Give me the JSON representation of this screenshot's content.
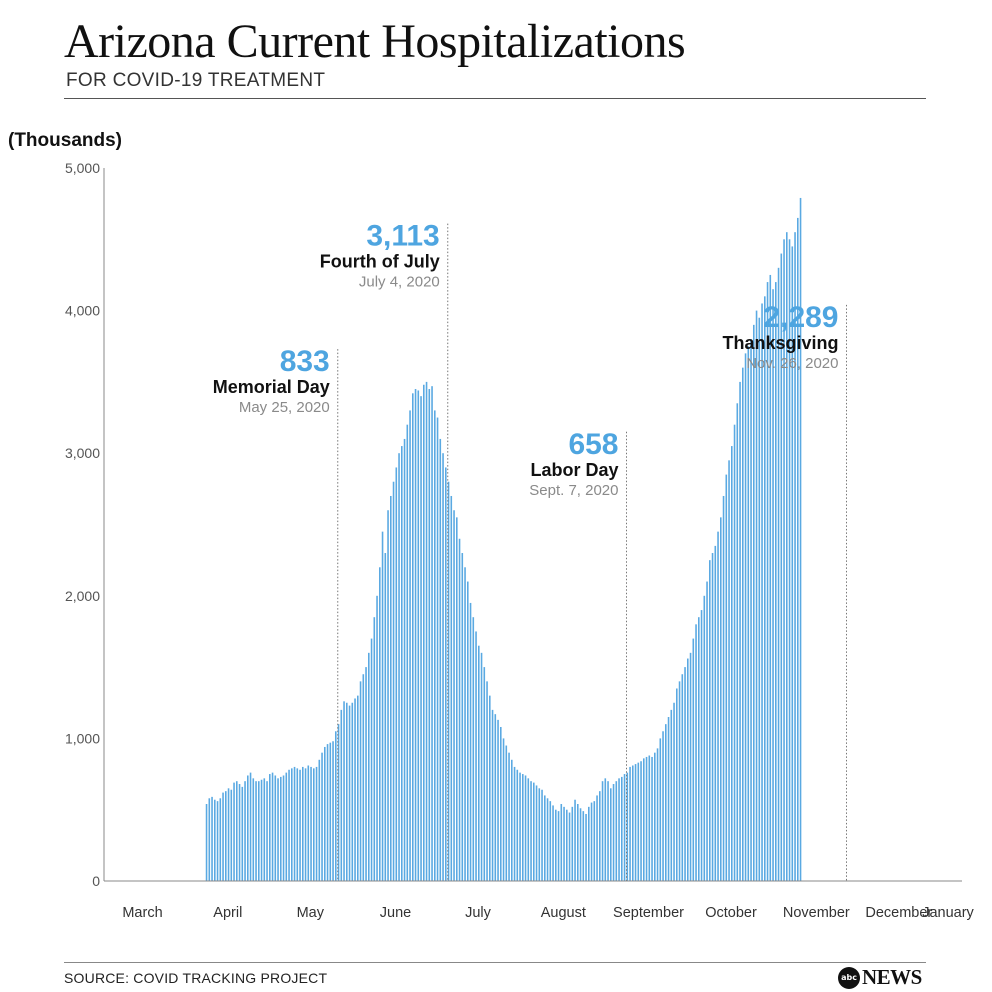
{
  "header": {
    "title": "Arizona Current Hospitalizations",
    "subtitle": "FOR COVID-19 TREATMENT"
  },
  "footer": {
    "source": "SOURCE: COVID TRACKING PROJECT",
    "logo_badge": "abc",
    "logo_text": "NEWS"
  },
  "chart_data": {
    "type": "bar",
    "unit_label": "(Thousands)",
    "bar_color": "#5aa9e2",
    "annotation_value_color": "#4ea5e0",
    "ylim": [
      0,
      5000
    ],
    "yticks": [
      {
        "value": 0,
        "label": "0"
      },
      {
        "value": 1000,
        "label": "1,000"
      },
      {
        "value": 2000,
        "label": "2,000"
      },
      {
        "value": 3000,
        "label": "3,000"
      },
      {
        "value": 4000,
        "label": "4,000"
      },
      {
        "value": 5000,
        "label": "5,000"
      }
    ],
    "xlim": [
      "2020-03-01",
      "2021-01-07"
    ],
    "xticks": [
      {
        "date": "2020-03-15",
        "label": "March"
      },
      {
        "date": "2020-04-15",
        "label": "April"
      },
      {
        "date": "2020-05-15",
        "label": "May"
      },
      {
        "date": "2020-06-15",
        "label": "June"
      },
      {
        "date": "2020-07-15",
        "label": "July"
      },
      {
        "date": "2020-08-15",
        "label": "August"
      },
      {
        "date": "2020-09-15",
        "label": "September"
      },
      {
        "date": "2020-10-15",
        "label": "October"
      },
      {
        "date": "2020-11-15",
        "label": "November"
      },
      {
        "date": "2020-12-15",
        "label": "December"
      },
      {
        "date": "2021-01-15",
        "label": "January"
      }
    ],
    "series": [
      {
        "start_date": "2020-04-07",
        "values": [
          540,
          580,
          590,
          570,
          560,
          580,
          620,
          630,
          650,
          640,
          690,
          700,
          680,
          660,
          700,
          740,
          760,
          720,
          700,
          700,
          710,
          720,
          700,
          750,
          760,
          740,
          720,
          730,
          740,
          760,
          780,
          790,
          800,
          790,
          780,
          800,
          790,
          810,
          800,
          790,
          800,
          850,
          900,
          940,
          960,
          970,
          980,
          1050,
          1100,
          1200,
          1260,
          1250,
          1230,
          1250,
          1280,
          1300,
          1400,
          1450,
          1500,
          1600,
          1700,
          1850,
          2000,
          2200,
          2450,
          2300,
          2600,
          2700,
          2800,
          2900,
          3000,
          3050,
          3100,
          3200,
          3300,
          3420,
          3450,
          3440,
          3400,
          3480,
          3500,
          3450,
          3470,
          3300,
          3250,
          3100,
          3000,
          2900,
          2800,
          2700,
          2600,
          2550,
          2400,
          2300,
          2200,
          2100,
          1950,
          1850,
          1750,
          1650,
          1600,
          1500,
          1400,
          1300,
          1200,
          1170,
          1130,
          1080,
          1000,
          950,
          900,
          850,
          800,
          780,
          760,
          750,
          740,
          720,
          700,
          690,
          670,
          650,
          640,
          600,
          580,
          560,
          530,
          500,
          490,
          540,
          520,
          500,
          480,
          520,
          570,
          540,
          510,
          490,
          470,
          520,
          550,
          560,
          600,
          630,
          700,
          720,
          700,
          650,
          680,
          700,
          720,
          730,
          750,
          760,
          800,
          810,
          820,
          830,
          840,
          860,
          870,
          880,
          870,
          900,
          930,
          1000,
          1050,
          1100,
          1150,
          1200,
          1250,
          1350,
          1400,
          1450,
          1500,
          1560,
          1600,
          1700,
          1800,
          1850,
          1900,
          2000,
          2100,
          2250,
          2300,
          2350,
          2450,
          2550,
          2700,
          2850,
          2950,
          3050,
          3200,
          3350,
          3500,
          3600,
          3700,
          3750,
          3800,
          3900,
          4000,
          3950,
          4050,
          4100,
          4200,
          4250,
          4150,
          4200,
          4300,
          4400,
          4500,
          4550,
          4500,
          4450,
          4550,
          4650,
          4790
        ]
      }
    ],
    "annotations": [
      {
        "date": "2020-05-25",
        "value_label": "833",
        "event": "Memorial Day",
        "date_label": "May 25, 2020",
        "top_value": 3730
      },
      {
        "date": "2020-07-04",
        "value_label": "3,113",
        "event": "Fourth of July",
        "date_label": "July 4, 2020",
        "top_value": 4610
      },
      {
        "date": "2020-09-07",
        "value_label": "658",
        "event": "Labor Day",
        "date_label": "Sept. 7, 2020",
        "top_value": 3150
      },
      {
        "date": "2020-11-26",
        "value_label": "2,289",
        "event": "Thanksgiving",
        "date_label": "Nov. 26, 2020",
        "top_value": 4040
      }
    ]
  }
}
